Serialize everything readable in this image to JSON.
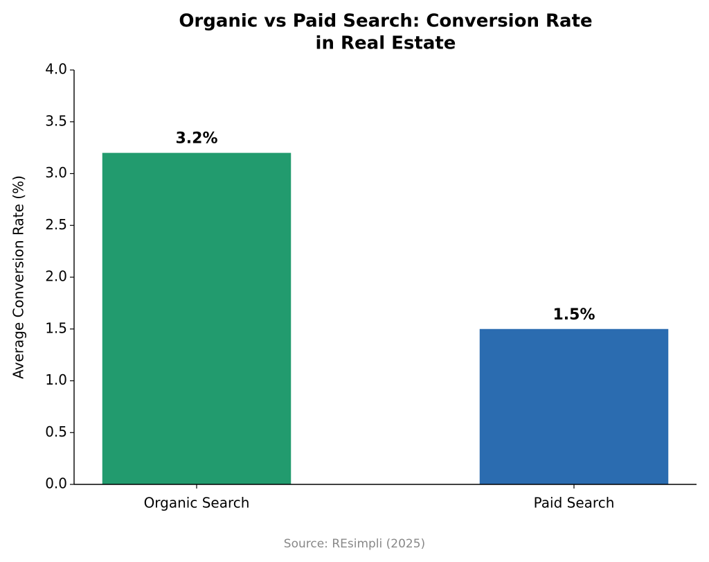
{
  "chart_data": {
    "type": "bar",
    "title": [
      "Organic vs Paid Search: Conversion Rate",
      "in Real Estate"
    ],
    "y_label": "Average Conversion Rate (%)",
    "categories": [
      "Organic Search",
      "Paid Search"
    ],
    "values": [
      3.2,
      1.5
    ],
    "value_labels": [
      "3.2%",
      "1.5%"
    ],
    "colors": [
      "#229b6e",
      "#2b6cb0"
    ],
    "ylim": [
      0,
      4
    ],
    "yticks": [
      {
        "value": 0,
        "label": "0.0"
      },
      0.5,
      {
        "value": 1,
        "label": "1.0"
      },
      1.5,
      {
        "value": 2,
        "label": "2.0"
      },
      2.5,
      {
        "value": 3,
        "label": "3.0"
      },
      3.5,
      {
        "value": 4,
        "label": "4.0"
      }
    ],
    "source": "Source: REsimpli (2025)",
    "grid": false
  }
}
